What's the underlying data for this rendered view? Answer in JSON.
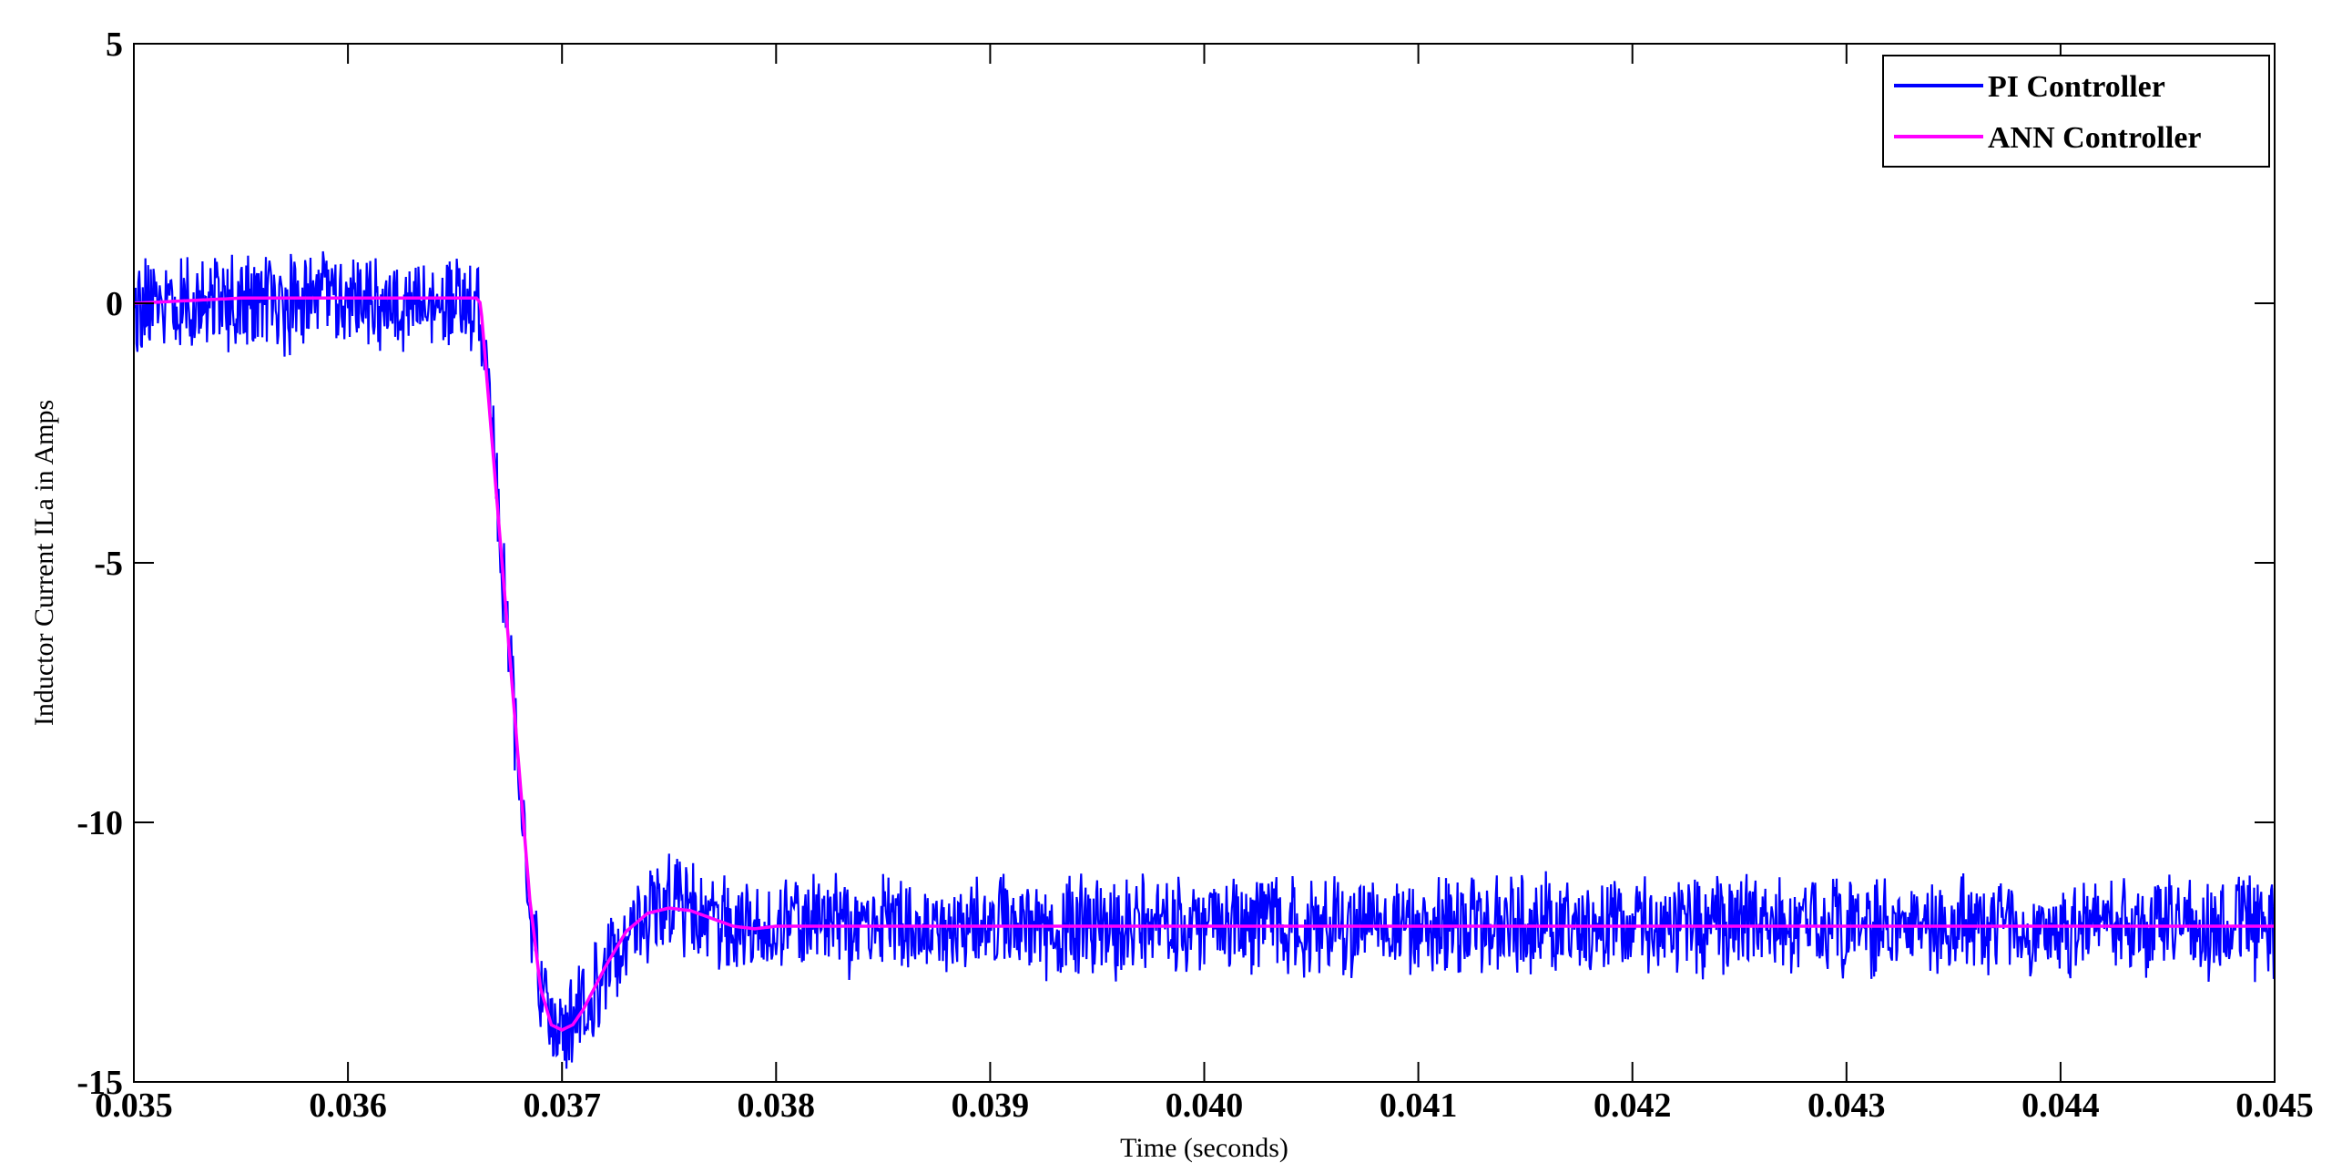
{
  "chart_data": {
    "type": "line",
    "title": "",
    "xlabel": "Time (seconds)",
    "ylabel": "Inductor Current ILa in Amps",
    "xlim": [
      0.035,
      0.045
    ],
    "ylim": [
      -15,
      5
    ],
    "x_ticks": [
      "0.035",
      "0.036",
      "0.037",
      "0.038",
      "0.039",
      "0.040",
      "0.041",
      "0.042",
      "0.043",
      "0.044",
      "0.045"
    ],
    "y_ticks": [
      "5",
      "0",
      "-5",
      "-10",
      "-15"
    ],
    "grid": false,
    "legend": {
      "placement": "top-right",
      "entries": [
        "PI Controller",
        "ANN Controller"
      ]
    },
    "series": [
      {
        "name": "PI Controller",
        "color": "#0000ff",
        "style": "noisy band",
        "x": [
          0.035,
          0.0365,
          0.0366,
          0.03662,
          0.03665,
          0.0367,
          0.03675,
          0.0368,
          0.03685,
          0.0369,
          0.03695,
          0.037,
          0.03705,
          0.0371,
          0.0372,
          0.0373,
          0.0374,
          0.0375,
          0.0376,
          0.0377,
          0.0378,
          0.0379,
          0.038,
          0.045
        ],
        "values": [
          0,
          0.05,
          0.05,
          0,
          -1.5,
          -4.0,
          -6.5,
          -9.0,
          -11.5,
          -13.2,
          -13.9,
          -14.0,
          -13.9,
          -13.6,
          -12.8,
          -12.1,
          -11.75,
          -11.65,
          -11.7,
          -11.85,
          -12.0,
          -12.05,
          -12.0,
          -12.0
        ],
        "noise_amplitude": 1.1
      },
      {
        "name": "ANN Controller",
        "color": "#ff00ff",
        "x": [
          0.035,
          0.0355,
          0.0365,
          0.0366,
          0.03662,
          0.03665,
          0.0367,
          0.03675,
          0.0368,
          0.03685,
          0.0369,
          0.03695,
          0.037,
          0.03705,
          0.0371,
          0.0372,
          0.0373,
          0.0374,
          0.0375,
          0.0376,
          0.0377,
          0.0378,
          0.0379,
          0.038,
          0.045
        ],
        "values": [
          0,
          0.1,
          0.1,
          0.1,
          0,
          -1.5,
          -4.0,
          -6.5,
          -9.0,
          -11.5,
          -13.2,
          -13.9,
          -14.0,
          -13.9,
          -13.6,
          -12.8,
          -12.1,
          -11.75,
          -11.65,
          -11.7,
          -11.85,
          -12.0,
          -12.05,
          -12.0,
          -12.0
        ]
      }
    ]
  }
}
